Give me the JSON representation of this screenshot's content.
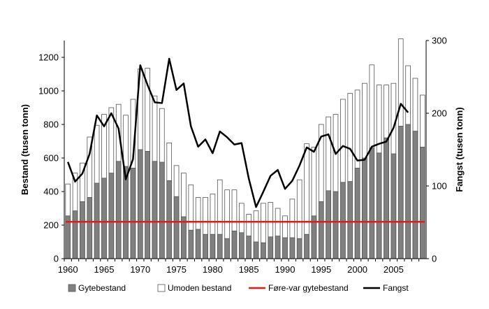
{
  "chart_data": {
    "type": "bar",
    "title": "",
    "xlabel": "",
    "ylabel": "Bestand (tusen tonn)",
    "y2label": "Fangst (tusen tonn)",
    "ylim": [
      0,
      1300
    ],
    "y2lim": [
      0,
      300
    ],
    "yticks": [
      0,
      200,
      400,
      600,
      800,
      1000,
      1200
    ],
    "y2ticks": [
      0,
      100,
      200,
      300
    ],
    "xticks": [
      1960,
      1965,
      1970,
      1975,
      1980,
      1985,
      1990,
      1995,
      2000,
      2005
    ],
    "years": [
      1960,
      1961,
      1962,
      1963,
      1964,
      1965,
      1966,
      1967,
      1968,
      1969,
      1970,
      1971,
      1972,
      1973,
      1974,
      1975,
      1976,
      1977,
      1978,
      1979,
      1980,
      1981,
      1982,
      1983,
      1984,
      1985,
      1986,
      1987,
      1988,
      1989,
      1990,
      1991,
      1992,
      1993,
      1994,
      1995,
      1996,
      1997,
      1998,
      1999,
      2000,
      2001,
      2002,
      2003,
      2004,
      2005,
      2006,
      2007,
      2008,
      2009
    ],
    "series": [
      {
        "name": "Gytebestand",
        "kind": "bar-stack-bottom",
        "color": "#808080",
        "values": [
          255,
          285,
          340,
          365,
          450,
          480,
          510,
          580,
          550,
          540,
          650,
          640,
          580,
          575,
          465,
          370,
          250,
          170,
          175,
          145,
          145,
          145,
          120,
          165,
          155,
          135,
          100,
          95,
          130,
          135,
          125,
          125,
          120,
          145,
          255,
          340,
          405,
          400,
          455,
          460,
          540,
          600,
          660,
          630,
          720,
          625,
          790,
          800,
          760,
          665
        ]
      },
      {
        "name": "Umoden bestand",
        "kind": "bar-stack-total",
        "color": "#ffffff",
        "values": [
          445,
          510,
          570,
          725,
          795,
          860,
          900,
          920,
          855,
          950,
          1130,
          1135,
          970,
          895,
          690,
          555,
          510,
          440,
          365,
          365,
          385,
          470,
          410,
          410,
          330,
          265,
          285,
          330,
          335,
          300,
          255,
          355,
          470,
          685,
          665,
          800,
          845,
          860,
          950,
          985,
          1005,
          1045,
          1155,
          1035,
          1035,
          1045,
          1310,
          1150,
          1075,
          975
        ]
      },
      {
        "name": "Føre-var gytebestand",
        "kind": "reference-line",
        "color": "#e31a1c",
        "value": 220
      },
      {
        "name": "Fangst",
        "kind": "line-secondary-axis",
        "color": "#000000",
        "values": [
          133,
          106,
          117,
          144,
          197,
          182,
          200,
          179,
          109,
          137,
          266,
          239,
          215,
          214,
          275,
          232,
          241,
          182,
          154,
          164,
          145,
          175,
          167,
          157,
          159,
          110,
          71,
          92,
          114,
          122,
          96,
          107,
          128,
          153,
          147,
          168,
          171,
          144,
          155,
          151,
          135,
          136,
          154,
          158,
          161,
          180,
          213,
          201,
          null,
          null
        ]
      }
    ],
    "legend": {
      "placement": "bottom",
      "entries": [
        "Gytebestand",
        "Umoden bestand",
        "Føre-var gytebestand",
        "Fangst"
      ]
    }
  }
}
